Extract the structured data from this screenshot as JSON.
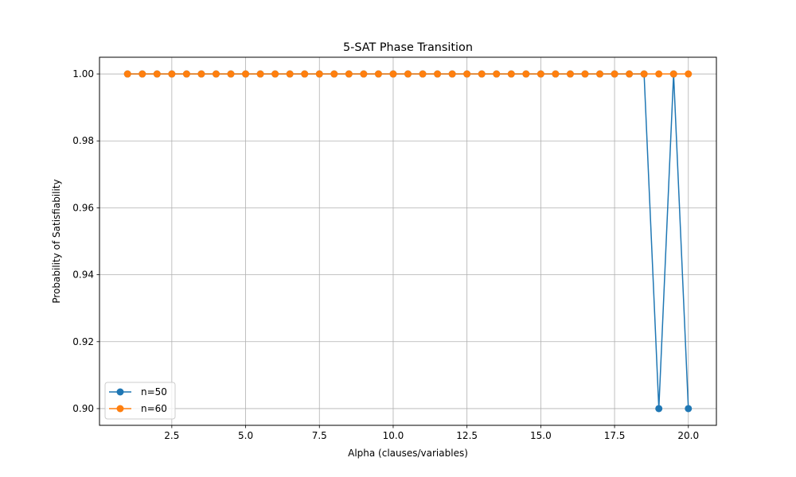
{
  "chart_data": {
    "type": "line",
    "title": "5-SAT Phase Transition",
    "xlabel": "Alpha (clauses/variables)",
    "ylabel": "Probability of Satisfiability",
    "xlim": [
      0.05,
      20.95
    ],
    "ylim": [
      0.895,
      1.005
    ],
    "xticks": [
      2.5,
      5.0,
      7.5,
      10.0,
      12.5,
      15.0,
      17.5,
      20.0
    ],
    "xtick_labels": [
      "2.5",
      "5.0",
      "7.5",
      "10.0",
      "12.5",
      "15.0",
      "17.5",
      "20.0"
    ],
    "yticks": [
      0.9,
      0.92,
      0.94,
      0.96,
      0.98,
      1.0
    ],
    "ytick_labels": [
      "0.90",
      "0.92",
      "0.94",
      "0.96",
      "0.98",
      "1.00"
    ],
    "grid": true,
    "legend_position": "lower-left",
    "x": [
      1.0,
      1.5,
      2.0,
      2.5,
      3.0,
      3.5,
      4.0,
      4.5,
      5.0,
      5.5,
      6.0,
      6.5,
      7.0,
      7.5,
      8.0,
      8.5,
      9.0,
      9.5,
      10.0,
      10.5,
      11.0,
      11.5,
      12.0,
      12.5,
      13.0,
      13.5,
      14.0,
      14.5,
      15.0,
      15.5,
      16.0,
      16.5,
      17.0,
      17.5,
      18.0,
      18.5,
      19.0,
      19.5,
      20.0
    ],
    "series": [
      {
        "name": "n=50",
        "color": "#1f77b4",
        "values": [
          1.0,
          1.0,
          1.0,
          1.0,
          1.0,
          1.0,
          1.0,
          1.0,
          1.0,
          1.0,
          1.0,
          1.0,
          1.0,
          1.0,
          1.0,
          1.0,
          1.0,
          1.0,
          1.0,
          1.0,
          1.0,
          1.0,
          1.0,
          1.0,
          1.0,
          1.0,
          1.0,
          1.0,
          1.0,
          1.0,
          1.0,
          1.0,
          1.0,
          1.0,
          1.0,
          1.0,
          0.9,
          1.0,
          0.9
        ]
      },
      {
        "name": "n=60",
        "color": "#ff7f0e",
        "values": [
          1.0,
          1.0,
          1.0,
          1.0,
          1.0,
          1.0,
          1.0,
          1.0,
          1.0,
          1.0,
          1.0,
          1.0,
          1.0,
          1.0,
          1.0,
          1.0,
          1.0,
          1.0,
          1.0,
          1.0,
          1.0,
          1.0,
          1.0,
          1.0,
          1.0,
          1.0,
          1.0,
          1.0,
          1.0,
          1.0,
          1.0,
          1.0,
          1.0,
          1.0,
          1.0,
          1.0,
          1.0,
          1.0,
          1.0
        ]
      }
    ]
  }
}
